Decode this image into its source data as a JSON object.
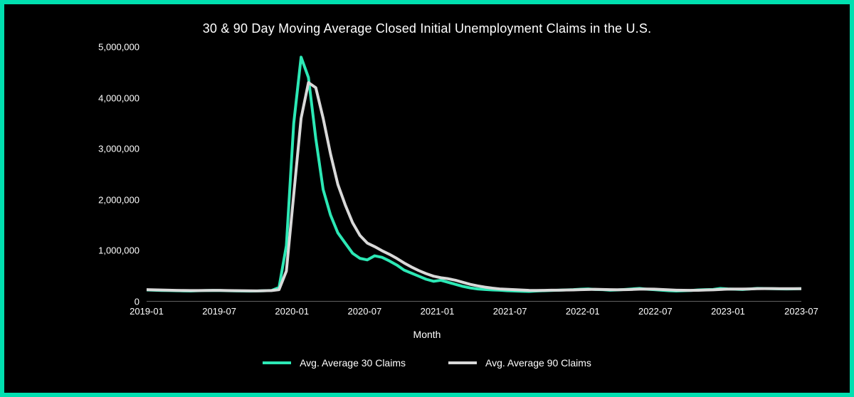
{
  "chart": {
    "type": "line",
    "title": "30 & 90 Day Moving Average Closed Initial Unemployment Claims in the U.S.",
    "x_title": "Month",
    "background_color": "#000000",
    "frame_color": "#00e0b0",
    "grid_color": "#c0c0c0",
    "text_color": "#ffffff",
    "title_fontsize": 18,
    "label_fontsize": 13,
    "line_width": 4,
    "x": {
      "labels": [
        "2019-01",
        "2019-07",
        "2020-01",
        "2020-07",
        "2021-01",
        "2021-07",
        "2022-01",
        "2022-07",
        "2023-01",
        "2023-07"
      ],
      "positions": [
        0,
        0.111,
        0.222,
        0.333,
        0.444,
        0.555,
        0.666,
        0.777,
        0.888,
        1.0
      ]
    },
    "y": {
      "labels": [
        "0",
        "1,000,000",
        "2,000,000",
        "3,000,000",
        "4,000,000",
        "5,000,000"
      ],
      "min": 0,
      "max": 5000000,
      "tick_step": 1000000
    },
    "series": [
      {
        "name": "Average 30 Claims",
        "color": "#2ce8b5",
        "values": [
          230000,
          225000,
          220000,
          218000,
          215000,
          212000,
          210000,
          215000,
          218000,
          220000,
          218000,
          215000,
          212000,
          210000,
          208000,
          210000,
          215000,
          220000,
          280000,
          1100000,
          3500000,
          4800000,
          4400000,
          3200000,
          2200000,
          1700000,
          1350000,
          1150000,
          950000,
          850000,
          820000,
          900000,
          870000,
          800000,
          720000,
          620000,
          560000,
          500000,
          440000,
          400000,
          420000,
          380000,
          340000,
          300000,
          270000,
          250000,
          240000,
          230000,
          225000,
          215000,
          210000,
          205000,
          200000,
          210000,
          215000,
          220000,
          225000,
          230000,
          235000,
          245000,
          250000,
          240000,
          235000,
          225000,
          230000,
          240000,
          250000,
          260000,
          245000,
          235000,
          225000,
          215000,
          210000,
          215000,
          220000,
          230000,
          235000,
          240000,
          260000,
          250000,
          245000,
          240000,
          250000,
          260000,
          258000,
          255000,
          252000,
          250000,
          252000,
          254000
        ]
      },
      {
        "name": "Average 90 Claims",
        "color": "#d9d9d9",
        "values": [
          235000,
          232000,
          228000,
          225000,
          222000,
          220000,
          218000,
          218000,
          220000,
          222000,
          221000,
          219000,
          217000,
          215000,
          213000,
          212000,
          214000,
          218000,
          235000,
          600000,
          2100000,
          3600000,
          4300000,
          4200000,
          3600000,
          2900000,
          2300000,
          1900000,
          1550000,
          1300000,
          1150000,
          1080000,
          1000000,
          930000,
          850000,
          760000,
          680000,
          610000,
          550000,
          500000,
          470000,
          450000,
          420000,
          380000,
          340000,
          310000,
          285000,
          265000,
          250000,
          242000,
          235000,
          228000,
          222000,
          220000,
          222000,
          225000,
          226000,
          228000,
          230000,
          235000,
          240000,
          242000,
          240000,
          236000,
          234000,
          236000,
          240000,
          246000,
          248000,
          246000,
          240000,
          232000,
          226000,
          223000,
          222000,
          224000,
          228000,
          232000,
          240000,
          246000,
          248000,
          248000,
          250000,
          254000,
          256000,
          256000,
          255000,
          254000,
          254000,
          255000
        ]
      }
    ],
    "legend": {
      "position": "bottom",
      "items": [
        {
          "label": "Avg. Average 30 Claims",
          "color": "#2ce8b5"
        },
        {
          "label": "Avg. Average 90 Claims",
          "color": "#d9d9d9"
        }
      ]
    }
  }
}
